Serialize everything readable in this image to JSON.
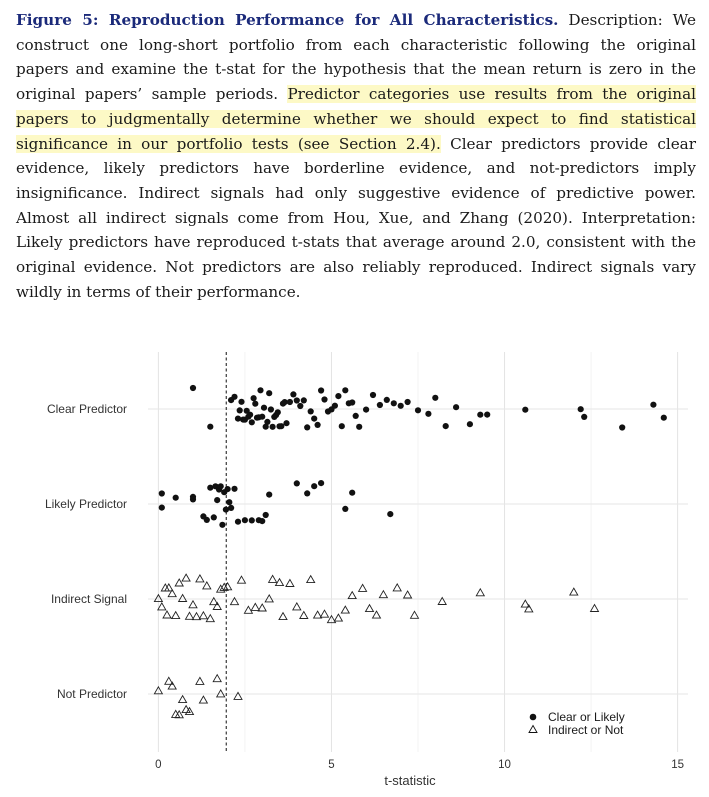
{
  "caption": {
    "title": "Figure 5: Reproduction Performance for All Characteristics.",
    "part1": " Description: We construct one long-short portfolio from each characteristic following the original papers and examine the t-stat for the hypothesis that the mean return is zero in the original papers’ sample periods. ",
    "highlight": "Predictor categories use results from the original papers to judgmentally determine whether we should expect to find statistical significance in our portfolio tests (see Section 2.4).",
    "part2": " Clear predictors provide clear evidence, likely predictors have borderline evidence, and not-predictors imply insignificance. Indirect signals had only suggestive evidence of predictive power. Almost all indirect signals come from Hou, Xue, and Zhang (2020). Interpretation: Likely predictors have reproduced t-stats that average around 2.0, consistent with the original evidence. Not predictors are also reliably reproduced. Indirect signals vary wildly in terms of their performance."
  },
  "chart_data": {
    "type": "scatter",
    "xlabel": "t-statistic",
    "xlim": [
      -0.3,
      15.3
    ],
    "xticks": [
      0,
      5,
      10,
      15
    ],
    "reference_line_x": 1.96,
    "categories": [
      "Clear Predictor",
      "Likely Predictor",
      "Indirect Signal",
      "Not Predictor"
    ],
    "legend": {
      "placement": "bottom-right",
      "entries": [
        {
          "label": "Clear or Likely",
          "marker": "filled-circle"
        },
        {
          "label": "Indirect or Not",
          "marker": "open-triangle"
        }
      ]
    },
    "grid": true,
    "series": [
      {
        "name": "Clear or Likely",
        "marker": "filled-circle",
        "points": [
          {
            "category": "Clear Predictor",
            "t": [
              1.0,
              1.5,
              2.1,
              2.2,
              2.3,
              2.35,
              2.4,
              2.45,
              2.5,
              2.55,
              2.6,
              2.65,
              2.7,
              2.75,
              2.8,
              2.85,
              2.9,
              2.95,
              3.0,
              3.05,
              3.1,
              3.15,
              3.2,
              3.25,
              3.3,
              3.35,
              3.4,
              3.45,
              3.5,
              3.55,
              3.6,
              3.65,
              3.7,
              3.8,
              3.9,
              4.0,
              4.1,
              4.2,
              4.3,
              4.4,
              4.5,
              4.6,
              4.7,
              4.8,
              4.9,
              5.0,
              5.1,
              5.2,
              5.3,
              5.4,
              5.5,
              5.6,
              5.7,
              5.8,
              6.0,
              6.2,
              6.4,
              6.6,
              6.8,
              7.0,
              7.2,
              7.5,
              7.8,
              8.0,
              8.3,
              8.6,
              9.0,
              9.3,
              9.5,
              10.6,
              12.2,
              12.3,
              13.4,
              14.3,
              14.6
            ]
          },
          {
            "category": "Likely Predictor",
            "t": [
              0.1,
              0.1,
              0.5,
              1.0,
              1.0,
              1.3,
              1.4,
              1.5,
              1.6,
              1.65,
              1.7,
              1.75,
              1.8,
              1.85,
              1.9,
              1.95,
              2.0,
              2.05,
              2.1,
              2.2,
              2.3,
              2.5,
              2.7,
              2.9,
              3.0,
              3.1,
              3.2,
              4.0,
              4.3,
              4.5,
              4.7,
              5.4,
              5.6,
              6.7
            ]
          }
        ]
      },
      {
        "name": "Indirect or Not",
        "marker": "open-triangle",
        "points": [
          {
            "category": "Indirect Signal",
            "t": [
              0.0,
              0.1,
              0.2,
              0.25,
              0.3,
              0.4,
              0.5,
              0.6,
              0.7,
              0.8,
              0.9,
              1.0,
              1.1,
              1.2,
              1.3,
              1.4,
              1.5,
              1.6,
              1.7,
              1.8,
              1.9,
              2.0,
              2.2,
              2.4,
              2.6,
              2.8,
              3.0,
              3.2,
              3.3,
              3.5,
              3.6,
              3.8,
              4.0,
              4.2,
              4.4,
              4.6,
              4.8,
              5.0,
              5.2,
              5.4,
              5.6,
              5.9,
              6.1,
              6.3,
              6.5,
              6.9,
              7.2,
              7.4,
              8.2,
              9.3,
              10.6,
              10.7,
              12.0,
              12.6
            ]
          },
          {
            "category": "Not Predictor",
            "t": [
              0.0,
              0.3,
              0.4,
              0.5,
              0.6,
              0.7,
              0.8,
              0.9,
              1.2,
              1.3,
              1.7,
              1.8,
              2.3
            ]
          }
        ]
      }
    ]
  }
}
